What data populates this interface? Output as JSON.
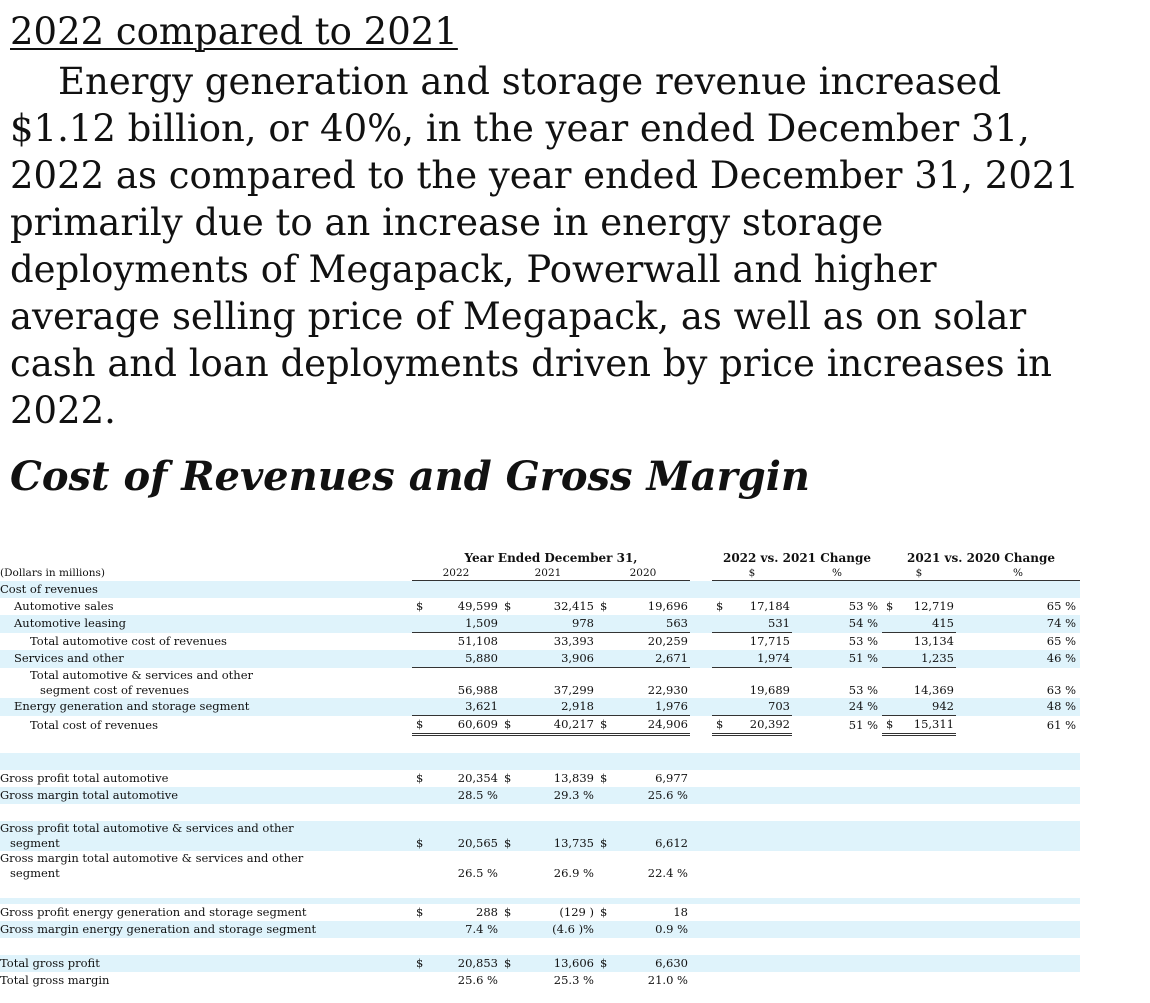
{
  "heading": "2022 compared to 2021",
  "paragraph_lines": [
    "Energy generation and storage revenue increased",
    "$1.12 billion, or 40%, in the year ended December 31,",
    "2022 as compared to the year ended December 31, 2021",
    "primarily due to an increase in energy storage",
    "deployments of Megapack, Powerwall and higher",
    "average selling price of Megapack, as well as on solar",
    "cash and loan deployments driven by price increases in",
    "2022."
  ],
  "section_title": "Cost of Revenues and Gross Margin",
  "table": {
    "group_year": "Year Ended December 31,",
    "group_chg1": "2022 vs. 2021 Change",
    "group_chg2": "2021 vs. 2020 Change",
    "units_label": "(Dollars in millions)",
    "col_2022": "2022",
    "col_2021": "2021",
    "col_2020": "2020",
    "col_dollar": "$",
    "col_pct": "%",
    "cur": "$",
    "rows": [
      {
        "label": "Cost of revenues"
      },
      {
        "label": "Automotive sales",
        "v22": "49,599",
        "v21": "32,415",
        "v20": "19,696",
        "c1": "17,184",
        "p1": "53 %",
        "c2": "12,719",
        "p2": "65 %"
      },
      {
        "label": "Automotive leasing",
        "v22": "1,509",
        "v21": "978",
        "v20": "563",
        "c1": "531",
        "p1": "54 %",
        "c2": "415",
        "p2": "74 %"
      },
      {
        "label": "Total automotive cost of revenues",
        "v22": "51,108",
        "v21": "33,393",
        "v20": "20,259",
        "c1": "17,715",
        "p1": "53 %",
        "c2": "13,134",
        "p2": "65 %"
      },
      {
        "label": "Services and other",
        "v22": "5,880",
        "v21": "3,906",
        "v20": "2,671",
        "c1": "1,974",
        "p1": "51 %",
        "c2": "1,235",
        "p2": "46 %"
      },
      {
        "label1": "Total automotive & services and other",
        "label2": "segment cost of revenues",
        "v22": "56,988",
        "v21": "37,299",
        "v20": "22,930",
        "c1": "19,689",
        "p1": "53 %",
        "c2": "14,369",
        "p2": "63 %"
      },
      {
        "label": "Energy generation and storage segment",
        "v22": "3,621",
        "v21": "2,918",
        "v20": "1,976",
        "c1": "703",
        "p1": "24 %",
        "c2": "942",
        "p2": "48 %"
      },
      {
        "label": "Total cost of revenues",
        "v22": "60,609",
        "v21": "40,217",
        "v20": "24,906",
        "c1": "20,392",
        "p1": "51 %",
        "c2": "15,311",
        "p2": "61 %"
      },
      {
        "label": "Gross profit total automotive",
        "v22": "20,354",
        "v21": "13,839",
        "v20": "6,977"
      },
      {
        "label": "Gross margin total automotive",
        "v22": "28.5 %",
        "v21": "29.3 %",
        "v20": "25.6 %"
      },
      {
        "label1": "Gross profit total automotive & services and other",
        "label2": "segment",
        "v22": "20,565",
        "v21": "13,735",
        "v20": "6,612"
      },
      {
        "label1": "Gross margin total automotive & services and other",
        "label2": "segment",
        "v22": "26.5 %",
        "v21": "26.9 %",
        "v20": "22.4 %"
      },
      {
        "label": "Gross profit energy generation and storage segment",
        "v22": "288",
        "v21": "(129 )",
        "v20": "18"
      },
      {
        "label": "Gross margin energy generation and storage segment",
        "v22": "7.4 %",
        "v21": "(4.6 )%",
        "v20": "0.9 %"
      },
      {
        "label": "Total gross profit",
        "v22": "20,853",
        "v21": "13,606",
        "v20": "6,630"
      },
      {
        "label": "Total gross margin",
        "v22": "25.6 %",
        "v21": "25.3 %",
        "v20": "21.0 %"
      }
    ]
  }
}
